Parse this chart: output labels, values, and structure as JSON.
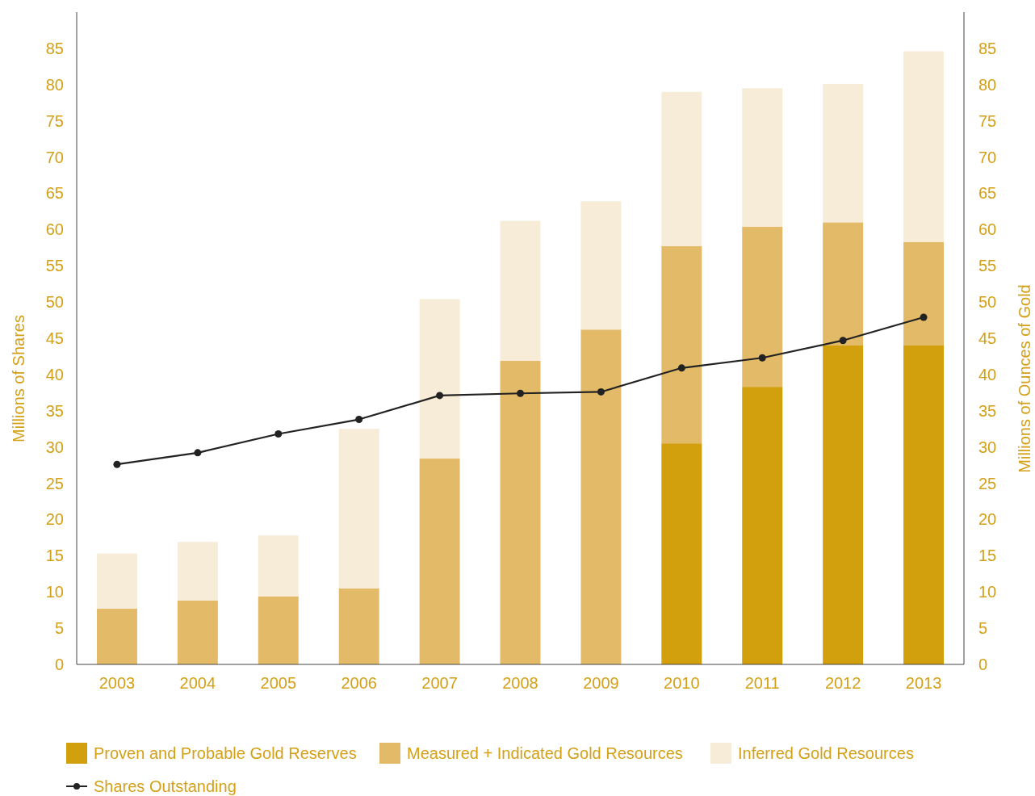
{
  "chart_data": {
    "type": "bar",
    "stacked": true,
    "ylabel": "Millions of Shares",
    "y2label": "Millions of Ounces of Gold",
    "categories": [
      "2003",
      "2004",
      "2005",
      "2006",
      "2007",
      "2008",
      "2009",
      "2010",
      "2011",
      "2012",
      "2013"
    ],
    "series": [
      {
        "name": "Proven and Probable Gold Reserves",
        "color": "#d29f0d",
        "values": [
          0,
          0,
          0,
          0,
          0,
          0,
          0,
          30.5,
          38.3,
          44.0,
          44.0
        ]
      },
      {
        "name": "Measured + Indicated Gold Resources",
        "color": "#e3bb68",
        "values": [
          7.7,
          8.8,
          9.4,
          10.5,
          28.4,
          41.9,
          46.2,
          27.2,
          22.1,
          17.0,
          14.3
        ]
      },
      {
        "name": "Inferred Gold Resources",
        "color": "#f7ecd7",
        "values": [
          7.6,
          8.1,
          8.4,
          22.0,
          22.0,
          19.3,
          17.7,
          21.3,
          19.1,
          19.1,
          26.3
        ]
      },
      {
        "name": "Shares Outstanding",
        "type": "line",
        "color": "#222222",
        "marker": "circle",
        "values": [
          27.6,
          29.2,
          31.8,
          33.8,
          37.1,
          37.4,
          37.6,
          40.9,
          42.3,
          44.7,
          47.9
        ]
      }
    ],
    "ylim": [
      0,
      90
    ],
    "yticks": [
      0,
      5,
      10,
      15,
      20,
      25,
      30,
      35,
      40,
      45,
      50,
      55,
      60,
      65,
      70,
      75,
      80,
      85
    ],
    "y2lim": [
      0,
      90
    ],
    "y2ticks": [
      0,
      5,
      10,
      15,
      20,
      25,
      30,
      35,
      40,
      45,
      50,
      55,
      60,
      65,
      70,
      75,
      80,
      85
    ],
    "grid": false,
    "legend": "bottom"
  }
}
